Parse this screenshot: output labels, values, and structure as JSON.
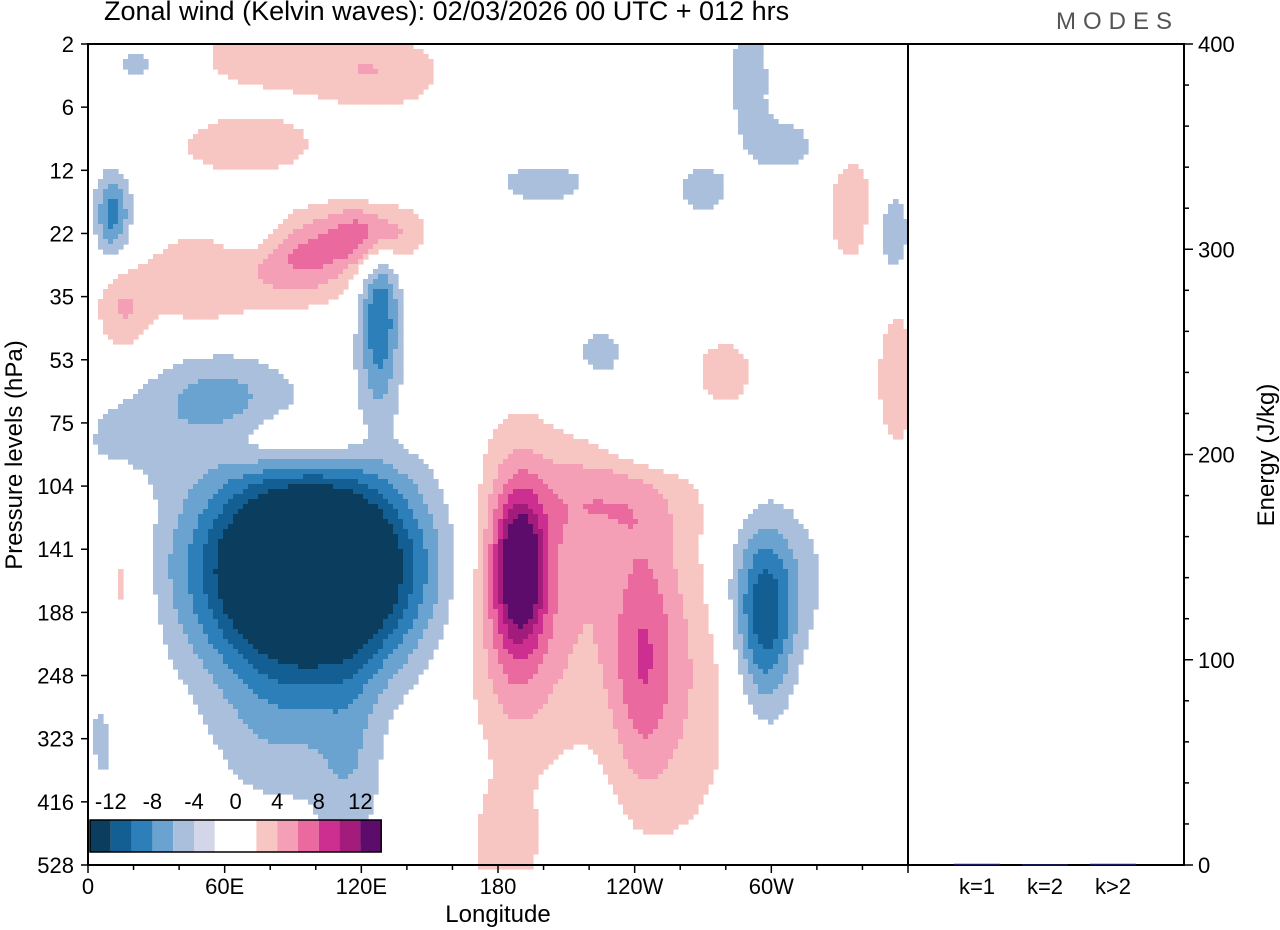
{
  "header": {
    "title": "Zonal wind (Kelvin waves):  02/03/2026  00 UTC  + 012 hrs",
    "brand": "MODES"
  },
  "chart_data": [
    {
      "type": "heatmap",
      "title": "Zonal wind (Kelvin waves):  02/03/2026  00 UTC  + 012 hrs",
      "xlabel": "Longitude",
      "ylabel": "Pressure levels (hPa)",
      "x_ticks": [
        "0",
        "60E",
        "120E",
        "180",
        "120W",
        "60W"
      ],
      "x_tick_degrees": [
        0,
        60,
        120,
        180,
        240,
        300
      ],
      "xlim": [
        0,
        360
      ],
      "y_ticks": [
        "2",
        "6",
        "12",
        "22",
        "35",
        "53",
        "75",
        "104",
        "141",
        "188",
        "248",
        "323",
        "416",
        "528"
      ],
      "colorbar": {
        "labels": [
          "-12",
          "-8",
          "-4",
          "0",
          "4",
          "8",
          "12"
        ],
        "colors": [
          "#0b3d5e",
          "#135f93",
          "#2c7fb8",
          "#6aa3cf",
          "#a9bfdc",
          "#d3d6e8",
          "#ffffff",
          "#ffffff",
          "#f8c6c2",
          "#f59fb6",
          "#ea6aa0",
          "#cc2f8f",
          "#a31c7c",
          "#5e0c6b"
        ]
      },
      "blobs": [
        {
          "lon": 98,
          "lev": 8.35,
          "dlon": 46,
          "dlev": 1.45,
          "v": -13
        },
        {
          "lon": 97,
          "lev": 8.2,
          "dlon": 52,
          "dlev": 1.9,
          "v": -8
        },
        {
          "lon": 128,
          "lev": 4.35,
          "dlon": 9,
          "dlev": 1.3,
          "v": -8
        },
        {
          "lon": 11,
          "lev": 2.7,
          "dlon": 8,
          "dlev": 0.7,
          "v": -7
        },
        {
          "lon": 297,
          "lev": 9.2,
          "dlon": 13,
          "dlev": 1.4,
          "v": -8
        },
        {
          "lon": 55,
          "lev": 5.6,
          "dlon": 30,
          "dlev": 0.9,
          "v": -4.5
        },
        {
          "lon": 15,
          "lev": 6.3,
          "dlon": 20,
          "dlev": 0.8,
          "v": -3
        },
        {
          "lon": 290,
          "lev": 0.5,
          "dlon": 10,
          "dlev": 0.9,
          "v": -3.5
        },
        {
          "lon": 305,
          "lev": 1.6,
          "dlon": 18,
          "dlev": 0.5,
          "v": -3
        },
        {
          "lon": 270,
          "lev": 2.3,
          "dlon": 14,
          "dlev": 0.5,
          "v": -3
        },
        {
          "lon": 353,
          "lev": 3.0,
          "dlon": 8,
          "dlev": 0.7,
          "v": -4
        },
        {
          "lon": 250,
          "lev": 6.2,
          "dlon": 22,
          "dlev": 0.6,
          "v": -3
        },
        {
          "lon": 82,
          "lev": 10.8,
          "dlon": 30,
          "dlev": 1.5,
          "v": -3
        },
        {
          "lon": 115,
          "lev": 11.5,
          "dlon": 15,
          "dlev": 1.8,
          "v": -3
        },
        {
          "lon": 300,
          "lev": 8.4,
          "dlon": 30,
          "dlev": 1.2,
          "v": -3
        },
        {
          "lon": 8,
          "lev": 10.8,
          "dlon": 12,
          "dlev": 1.6,
          "v": -3
        },
        {
          "lon": 24,
          "lev": 0.3,
          "dlon": 20,
          "dlev": 0.5,
          "v": -3
        },
        {
          "lon": 200,
          "lev": 2.2,
          "dlon": 25,
          "dlev": 0.4,
          "v": -3
        },
        {
          "lon": 225,
          "lev": 4.9,
          "dlon": 15,
          "dlev": 0.6,
          "v": -3
        },
        {
          "lon": 72,
          "lev": 2.9,
          "dlon": 14,
          "dlev": 0.5,
          "v": -2.8
        },
        {
          "lon": 187,
          "lev": 8.5,
          "dlon": 15,
          "dlev": 2.0,
          "v": 5.5
        },
        {
          "lon": 200,
          "lev": 8.8,
          "dlon": 40,
          "dlev": 2.6,
          "v": 4.5
        },
        {
          "lon": 243,
          "lev": 9.8,
          "dlon": 14,
          "dlev": 2.0,
          "v": 5
        },
        {
          "lon": 190,
          "lev": 8.3,
          "dlon": 10,
          "dlev": 1.0,
          "v": 9
        },
        {
          "lon": 183,
          "lev": 12.8,
          "dlon": 15,
          "dlev": 1.0,
          "v": 3.5
        },
        {
          "lon": 262,
          "lev": 9.7,
          "dlon": 26,
          "dlev": 3.2,
          "v": 3.5
        },
        {
          "lon": 226,
          "lev": 7.2,
          "dlon": 30,
          "dlev": 0.8,
          "v": 3.5
        },
        {
          "lon": 15,
          "lev": 8.8,
          "dlon": 12,
          "dlev": 2.2,
          "v": 3.5
        },
        {
          "lon": 50,
          "lev": 3.8,
          "dlon": 30,
          "dlev": 1.0,
          "v": 3.5
        },
        {
          "lon": 95,
          "lev": 3.4,
          "dlon": 24,
          "dlev": 0.7,
          "v": 6
        },
        {
          "lon": 125,
          "lev": 3.0,
          "dlon": 20,
          "dlev": 0.5,
          "v": 7
        },
        {
          "lon": 90,
          "lev": 6.3,
          "dlon": 35,
          "dlev": 0.5,
          "v": 4.5
        },
        {
          "lon": 15,
          "lev": 4.2,
          "dlon": 12,
          "dlev": 0.7,
          "v": 3.5
        },
        {
          "lon": 70,
          "lev": 1.6,
          "dlon": 40,
          "dlev": 0.6,
          "v": 3
        },
        {
          "lon": 335,
          "lev": 2.6,
          "dlon": 12,
          "dlev": 1.0,
          "v": 3.5
        },
        {
          "lon": 355,
          "lev": 5.3,
          "dlon": 10,
          "dlev": 1.3,
          "v": 3.5
        },
        {
          "lon": 280,
          "lev": 5.2,
          "dlon": 14,
          "dlev": 0.6,
          "v": 3
        },
        {
          "lon": 130,
          "lev": 0.5,
          "dlon": 30,
          "dlev": 0.6,
          "v": 3
        },
        {
          "lon": 80,
          "lev": 0.2,
          "dlon": 50,
          "dlev": 0.6,
          "v": 3
        }
      ]
    },
    {
      "type": "bar",
      "categories": [
        "k=1",
        "k=2",
        "k>2"
      ],
      "values": [
        0.6,
        0.4,
        0.6
      ],
      "ylabel": "Energy (J/kg)",
      "ylim": [
        0,
        400
      ],
      "y_ticks": [
        "0",
        "100",
        "200",
        "300",
        "400"
      ],
      "bar_color": "#1a1a5e"
    }
  ]
}
